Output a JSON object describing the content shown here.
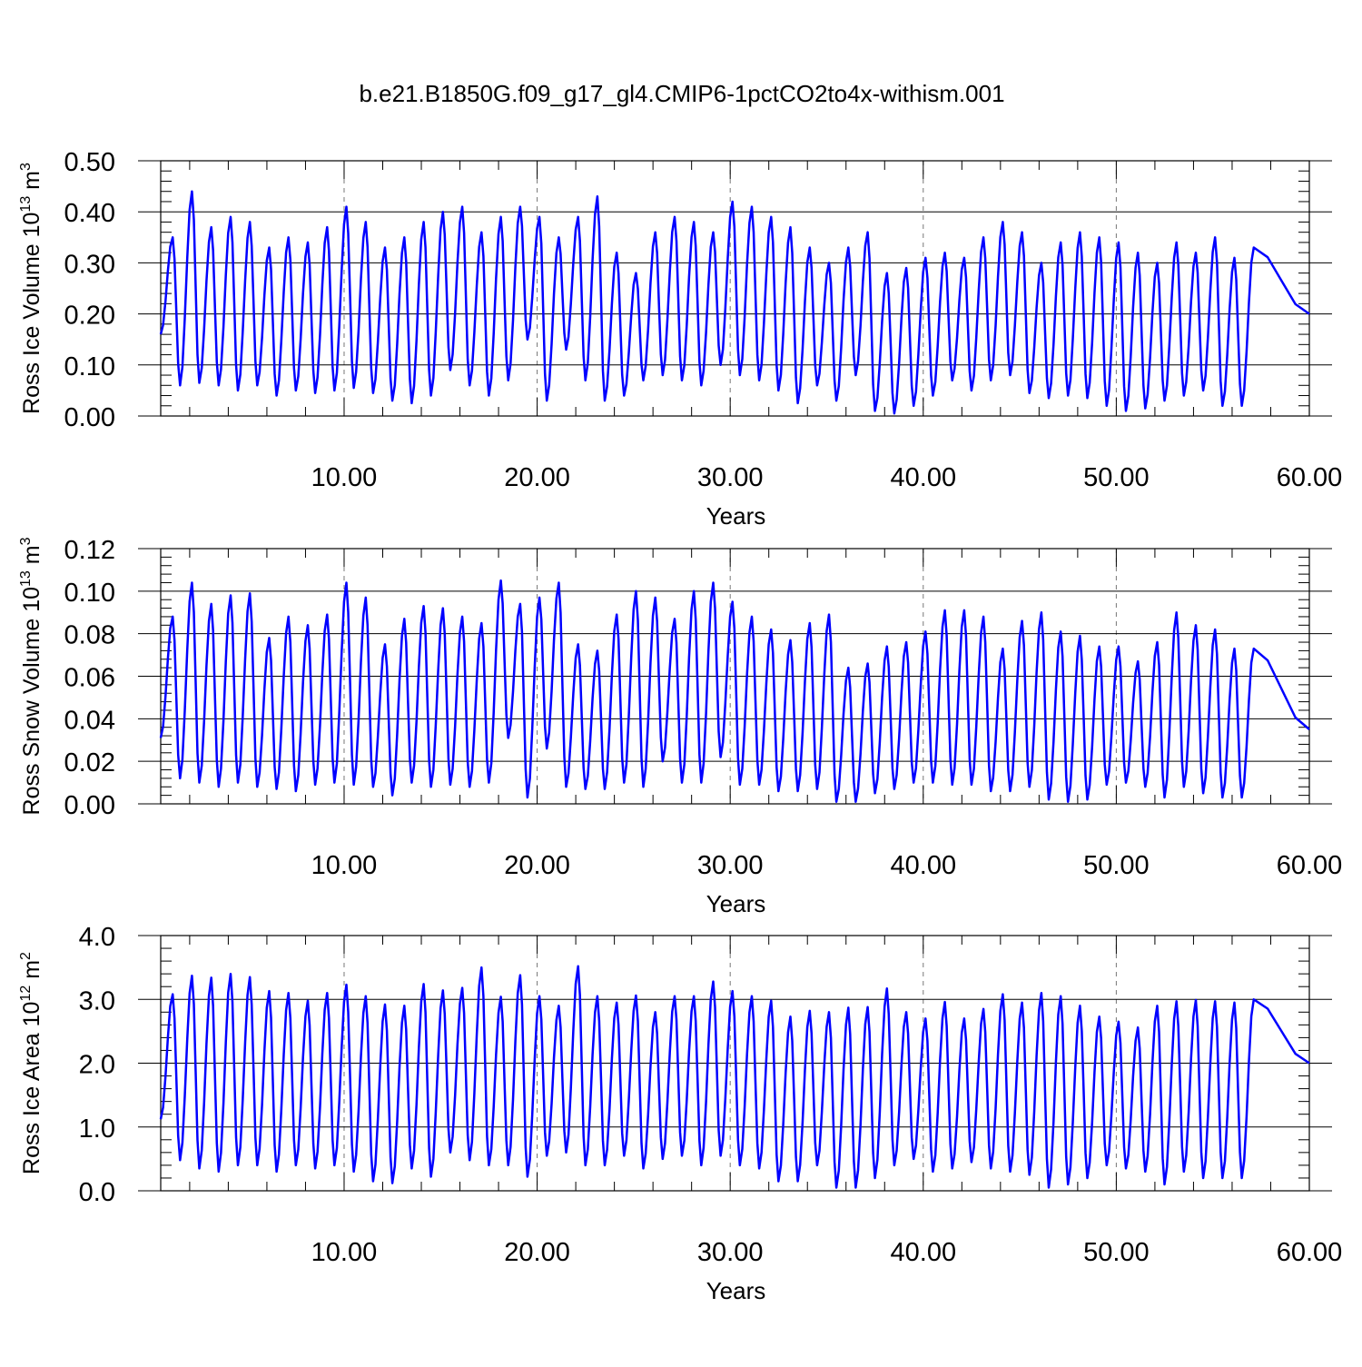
{
  "figure": {
    "title": "b.e21.B1850G.f09_g17_gl4.CMIP6-1pctCO2to4x-withism.001"
  },
  "colors": {
    "series": "#0000ff",
    "axis": "#000000",
    "grid": "#777777"
  },
  "chart_data": [
    {
      "type": "line",
      "title": "",
      "ylabel_main": "Ross Ice Volume 10",
      "ylabel_exp": "13",
      "ylabel_unit": " m",
      "ylabel_unit_exp": "3",
      "xlabel": "Years",
      "xlim": [
        0.5,
        60
      ],
      "ylim": [
        0,
        0.5
      ],
      "xticks": [
        10,
        20,
        30,
        40,
        50,
        60
      ],
      "xtick_labels": [
        "10.00",
        "20.00",
        "30.00",
        "40.00",
        "50.00",
        "60.00"
      ],
      "yticks": [
        0,
        0.1,
        0.2,
        0.3,
        0.4,
        0.5
      ],
      "ytick_labels": [
        "0.00",
        "0.10",
        "0.20",
        "0.30",
        "0.40",
        "0.50"
      ],
      "grid": "vertical dashed at major x ticks",
      "series": [
        {
          "peaks": [
            0.35,
            0.44,
            0.37,
            0.39,
            0.38,
            0.33,
            0.35,
            0.34,
            0.37,
            0.41,
            0.38,
            0.33,
            0.35,
            0.38,
            0.4,
            0.41,
            0.36,
            0.39,
            0.41,
            0.39,
            0.35,
            0.39,
            0.43,
            0.32,
            0.28,
            0.36,
            0.39,
            0.38,
            0.36,
            0.42,
            0.41,
            0.39,
            0.37,
            0.33,
            0.3,
            0.33,
            0.36,
            0.28,
            0.29,
            0.31,
            0.32,
            0.31,
            0.35,
            0.38,
            0.36,
            0.3,
            0.34,
            0.36,
            0.35,
            0.34,
            0.32,
            0.3,
            0.34,
            0.32,
            0.35,
            0.31,
            0.33
          ],
          "troughs": [
            0.16,
            0.06,
            0.065,
            0.06,
            0.05,
            0.06,
            0.04,
            0.05,
            0.045,
            0.05,
            0.055,
            0.045,
            0.03,
            0.025,
            0.04,
            0.09,
            0.06,
            0.04,
            0.07,
            0.15,
            0.03,
            0.13,
            0.07,
            0.03,
            0.04,
            0.07,
            0.08,
            0.07,
            0.06,
            0.1,
            0.08,
            0.07,
            0.05,
            0.025,
            0.06,
            0.03,
            0.08,
            0.01,
            0.005,
            0.02,
            0.04,
            0.07,
            0.05,
            0.07,
            0.08,
            0.045,
            0.035,
            0.04,
            0.035,
            0.02,
            0.01,
            0.015,
            0.03,
            0.04,
            0.05,
            0.02,
            0.02
          ],
          "end": 0.2
        }
      ]
    },
    {
      "type": "line",
      "title": "",
      "ylabel_main": "Ross Snow Volume 10",
      "ylabel_exp": "13",
      "ylabel_unit": " m",
      "ylabel_unit_exp": "3",
      "xlabel": "Years",
      "xlim": [
        0.5,
        60
      ],
      "ylim": [
        0,
        0.12
      ],
      "xticks": [
        10,
        20,
        30,
        40,
        50,
        60
      ],
      "xtick_labels": [
        "10.00",
        "20.00",
        "30.00",
        "40.00",
        "50.00",
        "60.00"
      ],
      "yticks": [
        0,
        0.02,
        0.04,
        0.06,
        0.08,
        0.1,
        0.12
      ],
      "ytick_labels": [
        "0.00",
        "0.02",
        "0.04",
        "0.06",
        "0.08",
        "0.10",
        "0.12"
      ],
      "grid": "vertical dashed at major x ticks",
      "series": [
        {
          "peaks": [
            0.088,
            0.104,
            0.094,
            0.098,
            0.099,
            0.078,
            0.088,
            0.084,
            0.089,
            0.104,
            0.097,
            0.075,
            0.087,
            0.093,
            0.092,
            0.088,
            0.085,
            0.105,
            0.094,
            0.097,
            0.104,
            0.075,
            0.072,
            0.089,
            0.1,
            0.097,
            0.087,
            0.1,
            0.104,
            0.095,
            0.088,
            0.082,
            0.077,
            0.085,
            0.089,
            0.064,
            0.066,
            0.074,
            0.076,
            0.081,
            0.091,
            0.091,
            0.088,
            0.073,
            0.086,
            0.09,
            0.081,
            0.079,
            0.074,
            0.074,
            0.067,
            0.076,
            0.09,
            0.084,
            0.082,
            0.073,
            0.073
          ],
          "troughs": [
            0.031,
            0.012,
            0.01,
            0.008,
            0.01,
            0.008,
            0.007,
            0.006,
            0.009,
            0.01,
            0.009,
            0.008,
            0.004,
            0.01,
            0.008,
            0.009,
            0.008,
            0.01,
            0.031,
            0.003,
            0.026,
            0.008,
            0.007,
            0.007,
            0.01,
            0.008,
            0.02,
            0.01,
            0.01,
            0.022,
            0.009,
            0.009,
            0.006,
            0.006,
            0.007,
            0.001,
            0.001,
            0.005,
            0.007,
            0.01,
            0.01,
            0.009,
            0.009,
            0.006,
            0.006,
            0.008,
            0.002,
            0.001,
            0.002,
            0.009,
            0.01,
            0.008,
            0.003,
            0.008,
            0.005,
            0.003,
            0.003
          ],
          "end": 0.035
        }
      ]
    },
    {
      "type": "line",
      "title": "",
      "ylabel_main": "Ross Ice Area 10",
      "ylabel_exp": "12",
      "ylabel_unit": " m",
      "ylabel_unit_exp": "2",
      "xlabel": "Years",
      "xlim": [
        0.5,
        60
      ],
      "ylim": [
        0,
        4.0
      ],
      "xticks": [
        10,
        20,
        30,
        40,
        50,
        60
      ],
      "xtick_labels": [
        "10.00",
        "20.00",
        "30.00",
        "40.00",
        "50.00",
        "60.00"
      ],
      "yticks": [
        0,
        1,
        2,
        3,
        4
      ],
      "ytick_labels": [
        "0.0",
        "1.0",
        "2.0",
        "3.0",
        "4.0"
      ],
      "grid": "vertical dashed at major x ticks",
      "series": [
        {
          "peaks": [
            3.08,
            3.37,
            3.34,
            3.4,
            3.35,
            3.13,
            3.1,
            2.98,
            3.1,
            3.23,
            3.05,
            2.92,
            2.9,
            3.24,
            3.14,
            3.18,
            3.5,
            3.04,
            3.38,
            3.05,
            2.9,
            3.52,
            3.05,
            2.95,
            3.06,
            2.8,
            3.05,
            3.05,
            3.28,
            3.13,
            3.05,
            2.98,
            2.73,
            2.82,
            2.8,
            2.87,
            2.88,
            3.17,
            2.8,
            2.7,
            2.96,
            2.7,
            2.85,
            3.08,
            2.95,
            3.1,
            3.05,
            2.9,
            2.73,
            2.65,
            2.56,
            2.9,
            2.97,
            2.99,
            2.97,
            2.95,
            3.0
          ],
          "troughs": [
            1.12,
            0.48,
            0.35,
            0.3,
            0.4,
            0.4,
            0.3,
            0.4,
            0.35,
            0.4,
            0.3,
            0.15,
            0.12,
            0.35,
            0.22,
            0.6,
            0.48,
            0.4,
            0.4,
            0.22,
            0.55,
            0.6,
            0.4,
            0.4,
            0.55,
            0.35,
            0.5,
            0.55,
            0.4,
            0.55,
            0.4,
            0.35,
            0.15,
            0.15,
            0.4,
            0.05,
            0.05,
            0.2,
            0.4,
            0.5,
            0.3,
            0.35,
            0.45,
            0.35,
            0.3,
            0.25,
            0.05,
            0.1,
            0.2,
            0.4,
            0.35,
            0.3,
            0.1,
            0.3,
            0.2,
            0.2,
            0.2
          ],
          "end": 2.0
        }
      ]
    }
  ]
}
